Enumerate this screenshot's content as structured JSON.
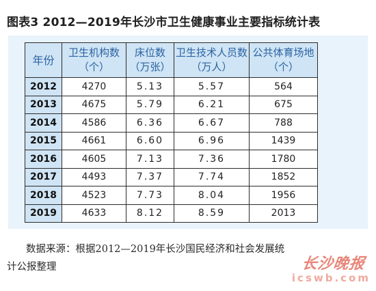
{
  "figure": {
    "title": "图表3  2012—2019年长沙市卫生健康事业主要指标统计表"
  },
  "table": {
    "headers": {
      "year": "年份",
      "institutions": "卫生机构数",
      "institutions_unit": "（个）",
      "beds": "床位数",
      "beds_unit": "（万张）",
      "personnel": "卫生技术人员数",
      "personnel_unit": "（万人）",
      "venues": "公共体育场地",
      "venues_unit": "（个）"
    },
    "rows": [
      {
        "year": "2012",
        "institutions": "4270",
        "beds": "5.13",
        "personnel": "5.57",
        "venues": "564"
      },
      {
        "year": "2013",
        "institutions": "4675",
        "beds": "5.79",
        "personnel": "6.21",
        "venues": "675"
      },
      {
        "year": "2014",
        "institutions": "4586",
        "beds": "6.36",
        "personnel": "6.67",
        "venues": "788"
      },
      {
        "year": "2015",
        "institutions": "4661",
        "beds": "6.60",
        "personnel": "6.96",
        "venues": "1439"
      },
      {
        "year": "2016",
        "institutions": "4605",
        "beds": "7.13",
        "personnel": "7.36",
        "venues": "1780"
      },
      {
        "year": "2017",
        "institutions": "4493",
        "beds": "7.37",
        "personnel": "7.74",
        "venues": "1852"
      },
      {
        "year": "2018",
        "institutions": "4523",
        "beds": "7.73",
        "personnel": "8.04",
        "venues": "1956"
      },
      {
        "year": "2019",
        "institutions": "4633",
        "beds": "8.12",
        "personnel": "8.59",
        "venues": "2013"
      }
    ]
  },
  "source": {
    "line1": "数据来源：根据2012—2019年长沙国民经济和社会发展统",
    "line2": "计公报整理"
  },
  "watermark": {
    "brand": "长沙晚报",
    "site": "icswb.com"
  },
  "colors": {
    "header_text": "#2b63a3",
    "header_bg": "#cfe4f4",
    "panel_bg": "#e9f3fb",
    "watermark": "#e8867a"
  }
}
